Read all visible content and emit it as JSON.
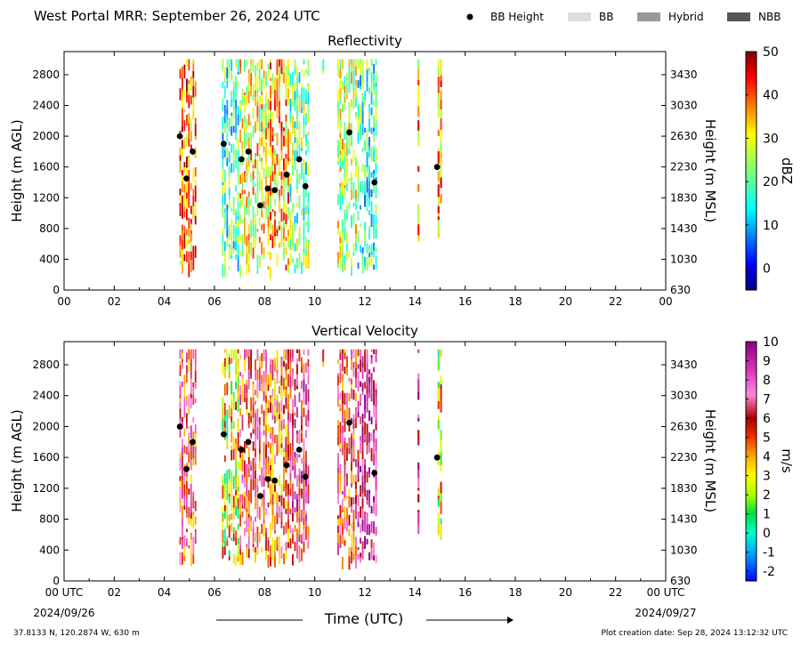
{
  "header": {
    "title": "West Portal MRR:  September 26, 2024 UTC",
    "legend": [
      {
        "label": "BB Height",
        "kind": "dot",
        "color": "#000000"
      },
      {
        "label": "BB",
        "kind": "swatch",
        "color": "#dddddd"
      },
      {
        "label": "Hybrid",
        "kind": "swatch",
        "color": "#999999"
      },
      {
        "label": "NBB",
        "kind": "swatch",
        "color": "#555555"
      }
    ]
  },
  "footer": {
    "location": "37.8133 N, 120.2874 W, 630 m",
    "created": "Plot creation date: Sep 28, 2024 13:12:32 UTC",
    "start_date": "2024/09/26",
    "end_date": "2024/09/27",
    "time_label": "Time (UTC)"
  },
  "chart_data": [
    {
      "type": "heatmap",
      "title": "Reflectivity",
      "ylabel": "Height (m AGL)",
      "y2label": "Height (m MSL)",
      "x_ticks": [
        "00",
        "02",
        "04",
        "06",
        "08",
        "10",
        "12",
        "14",
        "16",
        "18",
        "20",
        "22",
        "00"
      ],
      "xlim": [
        0,
        24
      ],
      "ylim": [
        0,
        3100
      ],
      "y_ticks": [
        0,
        400,
        800,
        1200,
        1600,
        2000,
        2400,
        2800
      ],
      "y2_ticks": [
        630,
        1030,
        1430,
        1830,
        2230,
        2630,
        3030,
        3430
      ],
      "colorbar": {
        "label": "dBZ",
        "min": -5,
        "max": 50,
        "ticks": [
          0,
          10,
          20,
          30,
          40,
          50
        ]
      },
      "echo_columns": [
        {
          "start": 4.6,
          "end": 5.3,
          "top": 3000,
          "bottom": 300,
          "mean": 38
        },
        {
          "start": 6.3,
          "end": 7.0,
          "top": 3000,
          "bottom": 300,
          "mean": 18
        },
        {
          "start": 7.0,
          "end": 8.2,
          "top": 3000,
          "bottom": 300,
          "mean": 30
        },
        {
          "start": 8.2,
          "end": 9.0,
          "top": 3000,
          "bottom": 300,
          "mean": 34
        },
        {
          "start": 9.0,
          "end": 9.8,
          "top": 3000,
          "bottom": 300,
          "mean": 22
        },
        {
          "start": 10.3,
          "end": 10.4,
          "top": 3000,
          "bottom": 2800,
          "mean": 24
        },
        {
          "start": 10.9,
          "end": 11.7,
          "top": 3000,
          "bottom": 300,
          "mean": 26
        },
        {
          "start": 11.7,
          "end": 12.5,
          "top": 3000,
          "bottom": 300,
          "mean": 18
        },
        {
          "start": 14.1,
          "end": 14.2,
          "top": 3000,
          "bottom": 700,
          "mean": 34
        },
        {
          "start": 14.9,
          "end": 15.1,
          "top": 3000,
          "bottom": 600,
          "mean": 36
        }
      ],
      "bb_height": [
        {
          "x": 4.62,
          "y": 2000
        },
        {
          "x": 4.88,
          "y": 1450
        },
        {
          "x": 5.13,
          "y": 1800
        },
        {
          "x": 6.37,
          "y": 1900
        },
        {
          "x": 7.08,
          "y": 1700
        },
        {
          "x": 7.35,
          "y": 1800
        },
        {
          "x": 7.83,
          "y": 1100
        },
        {
          "x": 8.13,
          "y": 1320
        },
        {
          "x": 8.4,
          "y": 1300
        },
        {
          "x": 8.88,
          "y": 1500
        },
        {
          "x": 9.38,
          "y": 1700
        },
        {
          "x": 9.63,
          "y": 1350
        },
        {
          "x": 11.38,
          "y": 2050
        },
        {
          "x": 12.38,
          "y": 1400
        },
        {
          "x": 14.88,
          "y": 1600
        }
      ]
    },
    {
      "type": "heatmap",
      "title": "Vertical Velocity",
      "ylabel": "Height (m AGL)",
      "y2label": "Height (m MSL)",
      "x_ticks": [
        "00 UTC",
        "02",
        "04",
        "06",
        "08",
        "10",
        "12",
        "14",
        "16",
        "18",
        "20",
        "22",
        "00 UTC"
      ],
      "xlim": [
        0,
        24
      ],
      "ylim": [
        0,
        3100
      ],
      "y_ticks": [
        0,
        400,
        800,
        1200,
        1600,
        2000,
        2400,
        2800
      ],
      "y2_ticks": [
        630,
        1030,
        1430,
        1830,
        2230,
        2630,
        3030,
        3430
      ],
      "colorbar": {
        "label": "m/s",
        "min": -2.5,
        "max": 10,
        "ticks": [
          -2,
          -1,
          0,
          1,
          2,
          3,
          4,
          5,
          6,
          7,
          8,
          9,
          10
        ]
      },
      "echo_columns": [
        {
          "start": 4.6,
          "end": 5.3,
          "top": 3000,
          "bottom": 300,
          "mean": 6
        },
        {
          "start": 6.3,
          "end": 7.0,
          "top": 3000,
          "bottom": 300,
          "mean": 3
        },
        {
          "start": 7.0,
          "end": 8.2,
          "top": 3000,
          "bottom": 300,
          "mean": 6
        },
        {
          "start": 8.2,
          "end": 9.0,
          "top": 3000,
          "bottom": 300,
          "mean": 5
        },
        {
          "start": 9.0,
          "end": 9.8,
          "top": 3000,
          "bottom": 300,
          "mean": 7
        },
        {
          "start": 10.3,
          "end": 10.4,
          "top": 3000,
          "bottom": 2800,
          "mean": 5
        },
        {
          "start": 10.9,
          "end": 11.7,
          "top": 3000,
          "bottom": 300,
          "mean": 6
        },
        {
          "start": 11.7,
          "end": 12.5,
          "top": 3000,
          "bottom": 300,
          "mean": 8
        },
        {
          "start": 14.1,
          "end": 14.2,
          "top": 3000,
          "bottom": 700,
          "mean": 8
        },
        {
          "start": 14.9,
          "end": 15.1,
          "top": 3000,
          "bottom": 600,
          "mean": 3
        }
      ],
      "bb_height": [
        {
          "x": 4.62,
          "y": 2000
        },
        {
          "x": 4.88,
          "y": 1450
        },
        {
          "x": 5.13,
          "y": 1800
        },
        {
          "x": 6.37,
          "y": 1900
        },
        {
          "x": 7.08,
          "y": 1700
        },
        {
          "x": 7.35,
          "y": 1800
        },
        {
          "x": 7.83,
          "y": 1100
        },
        {
          "x": 8.13,
          "y": 1320
        },
        {
          "x": 8.4,
          "y": 1300
        },
        {
          "x": 8.88,
          "y": 1500
        },
        {
          "x": 9.38,
          "y": 1700
        },
        {
          "x": 9.63,
          "y": 1350
        },
        {
          "x": 11.38,
          "y": 2050
        },
        {
          "x": 12.38,
          "y": 1400
        },
        {
          "x": 14.88,
          "y": 1600
        }
      ]
    }
  ]
}
